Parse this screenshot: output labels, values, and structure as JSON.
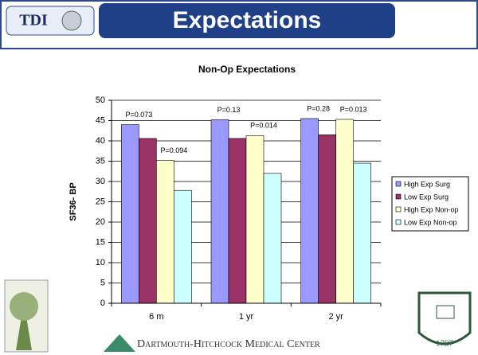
{
  "header": {
    "logo": "TDI",
    "title": "Expectations"
  },
  "footer": {
    "text": "Dartmouth-Hitchcock Medical Center",
    "seal_year": "1797"
  },
  "chart_data": {
    "type": "bar",
    "title": "Non-Op Expectations",
    "y_label": "SF36- BP",
    "categories": [
      "6 m",
      "1 yr",
      "2 yr"
    ],
    "series": [
      {
        "name": "High Exp Surg",
        "color": "#9999ff",
        "values": [
          44,
          45.2,
          45.5
        ]
      },
      {
        "name": "Low Exp Surg",
        "color": "#993366",
        "values": [
          40.6,
          40.6,
          41.5
        ]
      },
      {
        "name": "High Exp Non-op",
        "color": "#ffffcc",
        "values": [
          35.2,
          41.3,
          45.3
        ]
      },
      {
        "name": "Low Exp Non-op",
        "color": "#ccffff",
        "values": [
          27.8,
          32,
          34.5
        ]
      }
    ],
    "annotations": [
      "P=0.073",
      "P=0.094",
      "P=0.13",
      "P=0.014",
      "P=0.28",
      "P=0.013"
    ],
    "ylim": [
      0,
      50
    ],
    "yticks": [
      0,
      5,
      10,
      15,
      20,
      25,
      30,
      35,
      40,
      45,
      50
    ],
    "grid": true,
    "legend": "right"
  }
}
